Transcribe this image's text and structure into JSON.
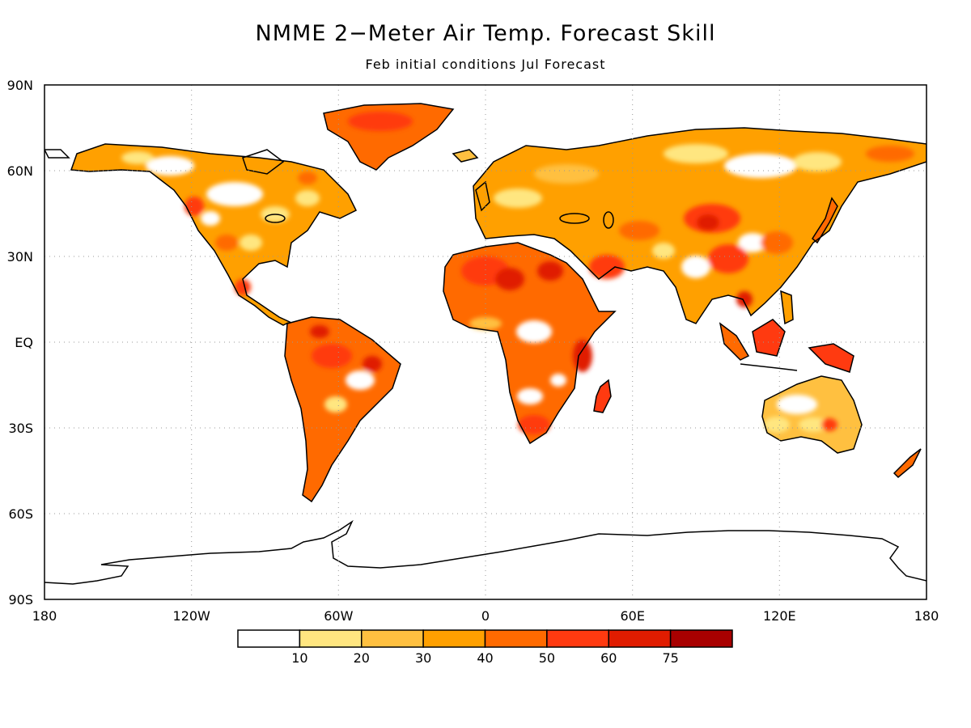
{
  "title": "NMME 2−Meter Air Temp. Forecast Skill",
  "subtitle": "Feb initial conditions   Jul Forecast",
  "axes": {
    "lat_labels": [
      "90N",
      "60N",
      "30N",
      "EQ",
      "30S",
      "60S",
      "90S"
    ],
    "lon_labels": [
      "180",
      "120W",
      "60W",
      "0",
      "60E",
      "120E",
      "180"
    ],
    "grid": "dotted"
  },
  "colorbar": {
    "tick_labels": [
      "10",
      "20",
      "30",
      "40",
      "50",
      "60",
      "75"
    ],
    "colors": [
      "#ffffff",
      "#ffe680",
      "#ffc040",
      "#ffa000",
      "#ff6a00",
      "#ff3a10",
      "#e01c00",
      "#a80000"
    ]
  }
}
